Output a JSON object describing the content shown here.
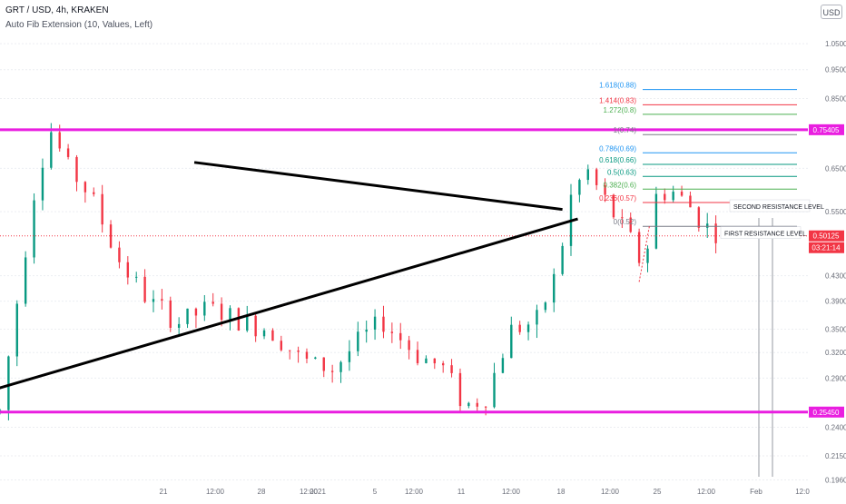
{
  "header": {
    "symbol_line": "GRT / USD, 4h, KRAKEN",
    "indicator_line": "Auto Fib Extension (10, Values, Left)",
    "currency_button": "USD"
  },
  "chart_data": {
    "type": "candlestick",
    "y_scale": "log",
    "ylim": [
      0.195,
      1.08
    ],
    "y_ticks": [
      "1.05000",
      "0.95000",
      "0.85000",
      "0.75405",
      "0.65000",
      "0.55000",
      "0.50125",
      "0.43000",
      "0.39000",
      "0.35000",
      "0.32000",
      "0.29000",
      "0.25450",
      "0.24000",
      "0.21500",
      "0.19600"
    ],
    "x_ticks": [
      "21",
      "12:00",
      "28",
      "12:00",
      "2021",
      "5",
      "12:00",
      "11",
      "12:00",
      "18",
      "12:00",
      "25",
      "12:00",
      "Feb",
      "12:0"
    ],
    "price_lines": [
      {
        "name": "support-line",
        "value": 0.2545,
        "label": "0.25450",
        "color": "#e91ee0"
      },
      {
        "name": "resistance-line",
        "value": 0.75405,
        "label": "0.75405",
        "color": "#e91ee0"
      }
    ],
    "last_price": {
      "value": 0.50125,
      "label": "0.50125",
      "countdown": "03:21:14",
      "color": "#f23645"
    },
    "fib_levels": [
      {
        "label": "1.618(0.88)",
        "value": 0.88,
        "color": "#2196f3"
      },
      {
        "label": "1.414(0.83)",
        "value": 0.83,
        "color": "#f23645"
      },
      {
        "label": "1.272(0.8)",
        "value": 0.8,
        "color": "#4caf50"
      },
      {
        "label": "1(0.74)",
        "value": 0.74,
        "color": "#787b86"
      },
      {
        "label": "0.786(0.69)",
        "value": 0.69,
        "color": "#2196f3"
      },
      {
        "label": "0.618(0.66)",
        "value": 0.66,
        "color": "#089981"
      },
      {
        "label": "0.5(0.63)",
        "value": 0.63,
        "color": "#089981"
      },
      {
        "label": "0.382(0.6)",
        "value": 0.6,
        "color": "#4caf50"
      },
      {
        "label": "0.236(0.57)",
        "value": 0.57,
        "color": "#f23645"
      },
      {
        "label": "0(0.52)",
        "value": 0.52,
        "color": "#787b86"
      }
    ],
    "annotations": [
      "SECOND RESISTANCE LEVEL",
      "FIRST RESISTANCE LEVEL"
    ],
    "trendlines": [
      {
        "name": "upper-trendline",
        "from": [
          19.3,
          0.665
        ],
        "to": [
          26.5,
          0.555
        ]
      },
      {
        "name": "lower-trendline",
        "from": [
          11.5,
          0.222
        ],
        "to": [
          26.8,
          0.535
        ]
      }
    ],
    "x_range_days": [
      15.5,
      31.3
    ],
    "colors": {
      "up": "#089981",
      "down": "#f23645",
      "grid": "#e0e3eb"
    }
  }
}
